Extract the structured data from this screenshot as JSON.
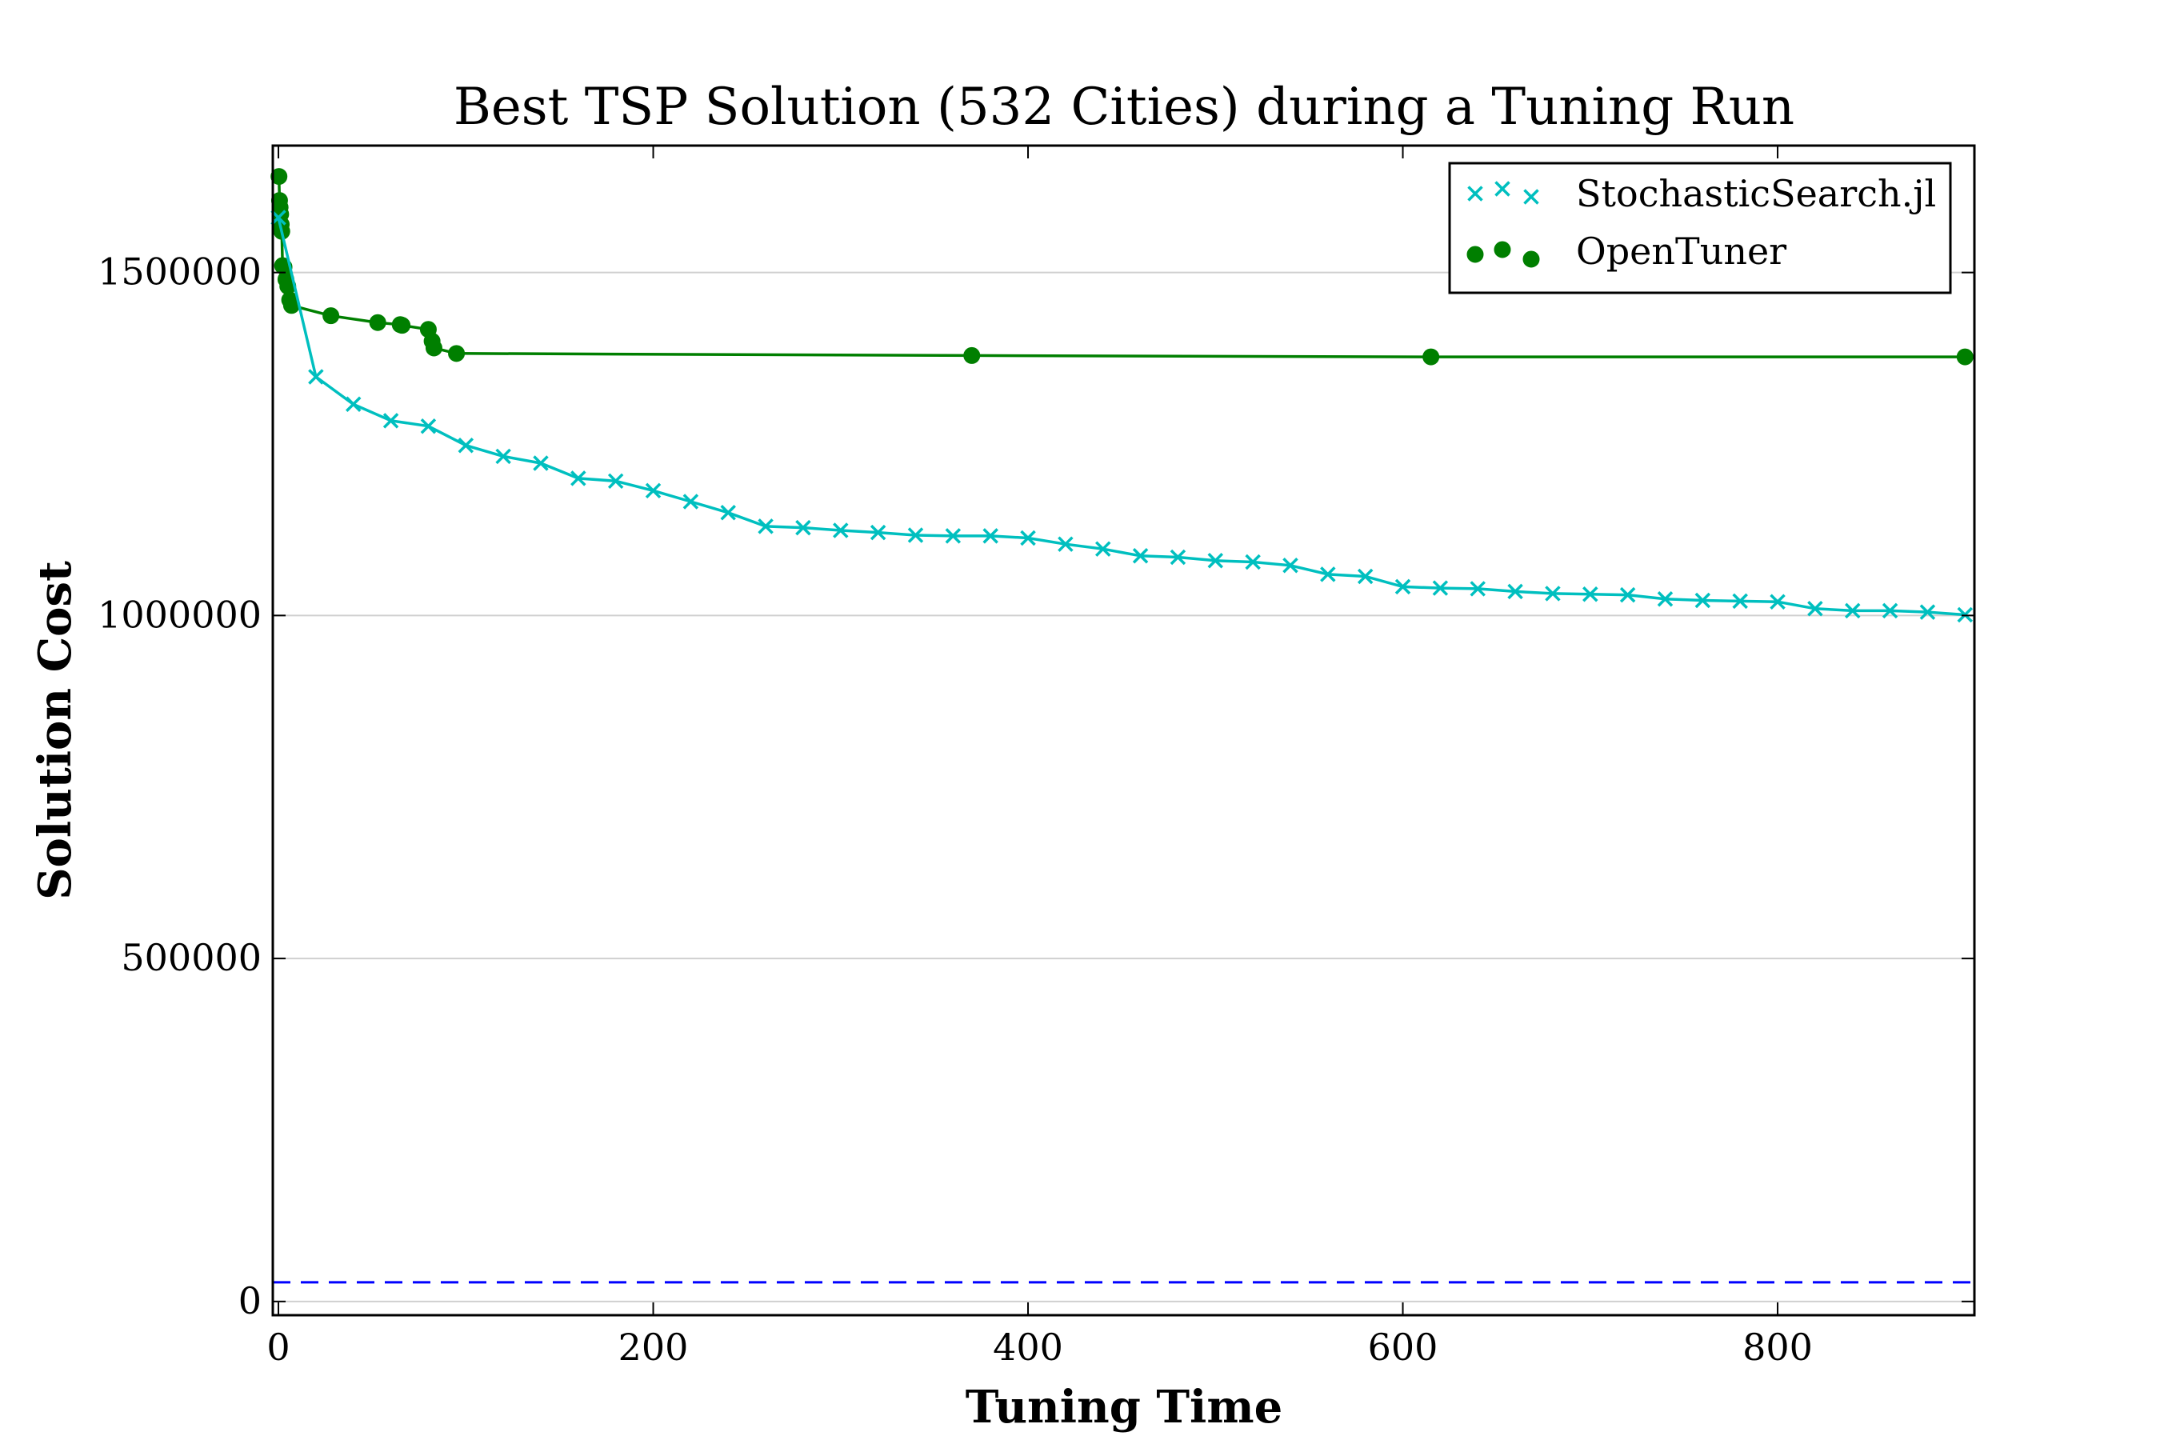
{
  "chart_data": {
    "type": "line",
    "title": "Best TSP Solution (532 Cities) during a Tuning Run",
    "xlabel": "Tuning Time",
    "ylabel": "Solution Cost",
    "xlim": [
      -3,
      905
    ],
    "ylim": [
      -20000,
      1685000
    ],
    "x_ticks": [
      0,
      200,
      400,
      600,
      800
    ],
    "x_tick_labels": [
      "0",
      "200",
      "400",
      "600",
      "800"
    ],
    "y_ticks": [
      0,
      500000,
      1000000,
      1500000
    ],
    "y_tick_labels": [
      "0",
      "500000",
      "1000000",
      "1500000"
    ],
    "grid": "horizontal",
    "legend_position": "top-right",
    "series": [
      {
        "name": "StochasticSearch.jl",
        "color": "#00bfbf",
        "marker": "x",
        "x": [
          0,
          20,
          40,
          60,
          80,
          100,
          120,
          140,
          160,
          180,
          200,
          220,
          240,
          260,
          280,
          300,
          320,
          340,
          360,
          380,
          400,
          420,
          440,
          460,
          480,
          500,
          520,
          540,
          560,
          580,
          600,
          620,
          640,
          660,
          680,
          700,
          720,
          740,
          760,
          780,
          800,
          820,
          840,
          860,
          880,
          900
        ],
        "y": [
          1580000,
          1348000,
          1308000,
          1284000,
          1276000,
          1248000,
          1232000,
          1222000,
          1200000,
          1196000,
          1182000,
          1166000,
          1150000,
          1130000,
          1128000,
          1124000,
          1121000,
          1117000,
          1116000,
          1116000,
          1113000,
          1104000,
          1097000,
          1087000,
          1085000,
          1080000,
          1078000,
          1073000,
          1060000,
          1057000,
          1042000,
          1040000,
          1039000,
          1035000,
          1032000,
          1031000,
          1030000,
          1024000,
          1022000,
          1021000,
          1020000,
          1010000,
          1007000,
          1007000,
          1005000,
          1001000
        ]
      },
      {
        "name": "OpenTuner",
        "color": "#007f00",
        "marker": "o",
        "x": [
          0.3,
          0.6,
          0.9,
          1.2,
          1.5,
          1.8,
          2.2,
          3,
          4,
          5,
          6,
          7,
          28,
          53,
          65,
          66,
          80,
          82,
          83,
          95,
          370,
          615,
          900
        ],
        "y": [
          1640000,
          1605000,
          1595000,
          1585000,
          1570000,
          1560000,
          1510000,
          1508000,
          1490000,
          1480000,
          1460000,
          1452000,
          1437000,
          1427000,
          1424000,
          1423000,
          1417000,
          1400000,
          1390000,
          1382000,
          1379000,
          1377000,
          1377000
        ]
      }
    ],
    "reference_line": {
      "y": 28000,
      "color": "#0000ff",
      "style": "dashed"
    }
  }
}
